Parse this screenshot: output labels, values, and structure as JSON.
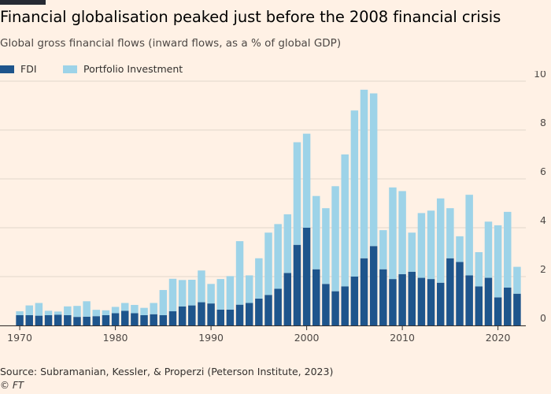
{
  "title": "Financial globalisation peaked just before the 2008 financial crisis",
  "subtitle": "Global gross financial flows (inward flows, as a % of global GDP)",
  "source": "Source: Subramanian, Kessler, & Properzi (Peterson Institute, 2023)",
  "credit": "© FT",
  "legend": [
    {
      "label": "FDI",
      "color": "#1e558c"
    },
    {
      "label": "Portfolio Investment",
      "color": "#9dd3e8"
    }
  ],
  "colors": {
    "background": "#fff1e5",
    "fdi": "#1e558c",
    "portfolio": "#9dd3e8",
    "grid": "#e0d6cc"
  },
  "chart_data": {
    "type": "bar",
    "stacked": true,
    "grid": true,
    "legend_position": "top-left",
    "x": [
      1970,
      1971,
      1972,
      1973,
      1974,
      1975,
      1976,
      1977,
      1978,
      1979,
      1980,
      1981,
      1982,
      1983,
      1984,
      1985,
      1986,
      1987,
      1988,
      1989,
      1990,
      1991,
      1992,
      1993,
      1994,
      1995,
      1996,
      1997,
      1998,
      1999,
      2000,
      2001,
      2002,
      2003,
      2004,
      2005,
      2006,
      2007,
      2008,
      2009,
      2010,
      2011,
      2012,
      2013,
      2014,
      2015,
      2016,
      2017,
      2018,
      2019,
      2020,
      2021,
      2022
    ],
    "x_ticks": [
      "1970",
      "1980",
      "1990",
      "2000",
      "2010",
      "2020"
    ],
    "y_ticks": [
      "0",
      "2",
      "4",
      "6",
      "8",
      "10"
    ],
    "ylim": [
      0,
      10
    ],
    "series": [
      {
        "name": "FDI",
        "values": [
          0.42,
          0.42,
          0.4,
          0.42,
          0.44,
          0.42,
          0.35,
          0.36,
          0.38,
          0.42,
          0.5,
          0.6,
          0.5,
          0.42,
          0.46,
          0.42,
          0.58,
          0.78,
          0.82,
          0.95,
          0.9,
          0.65,
          0.65,
          0.85,
          0.92,
          1.1,
          1.25,
          1.5,
          2.15,
          3.3,
          4.0,
          2.3,
          1.7,
          1.4,
          1.6,
          2.0,
          2.75,
          3.25,
          2.3,
          1.9,
          2.1,
          2.2,
          1.95,
          1.9,
          1.75,
          2.75,
          2.6,
          2.05,
          1.6,
          1.95,
          1.15,
          1.55,
          1.3
        ]
      },
      {
        "name": "Portfolio Investment",
        "values": [
          0.16,
          0.4,
          0.52,
          0.18,
          0.13,
          0.36,
          0.45,
          0.63,
          0.26,
          0.2,
          0.26,
          0.32,
          0.34,
          0.3,
          0.46,
          1.03,
          1.33,
          1.08,
          1.05,
          1.3,
          0.8,
          1.25,
          1.37,
          2.6,
          1.13,
          1.65,
          2.55,
          2.65,
          2.4,
          4.2,
          3.85,
          3.0,
          3.1,
          4.3,
          5.4,
          6.8,
          6.9,
          6.25,
          1.6,
          3.75,
          3.4,
          1.6,
          2.65,
          2.8,
          3.45,
          2.05,
          1.05,
          3.3,
          1.4,
          2.3,
          2.95,
          3.1,
          1.1
        ]
      }
    ]
  }
}
